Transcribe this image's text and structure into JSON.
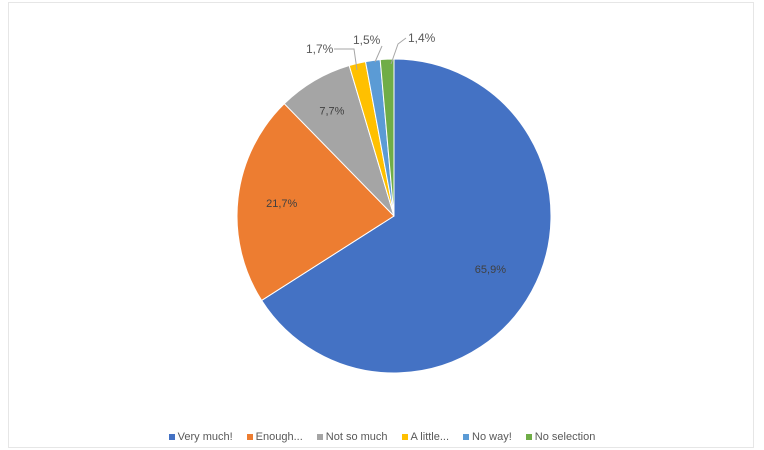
{
  "chart_data": {
    "type": "pie",
    "title": "",
    "legend_position": "bottom",
    "slices": [
      {
        "name": "Very much!",
        "value": 65.9,
        "label": "65,9%",
        "color": "#4472C4"
      },
      {
        "name": "Enough...",
        "value": 21.7,
        "label": "21,7%",
        "color": "#ED7D31"
      },
      {
        "name": "Not so much",
        "value": 7.7,
        "label": "7,7%",
        "color": "#A5A5A5"
      },
      {
        "name": "A little...",
        "value": 1.7,
        "label": "1,7%",
        "color": "#FFC000"
      },
      {
        "name": "No way!",
        "value": 1.5,
        "label": "1,5%",
        "color": "#5B9BD5"
      },
      {
        "name": "No selection",
        "value": 1.4,
        "label": "1,4%",
        "color": "#70AD47"
      }
    ]
  }
}
